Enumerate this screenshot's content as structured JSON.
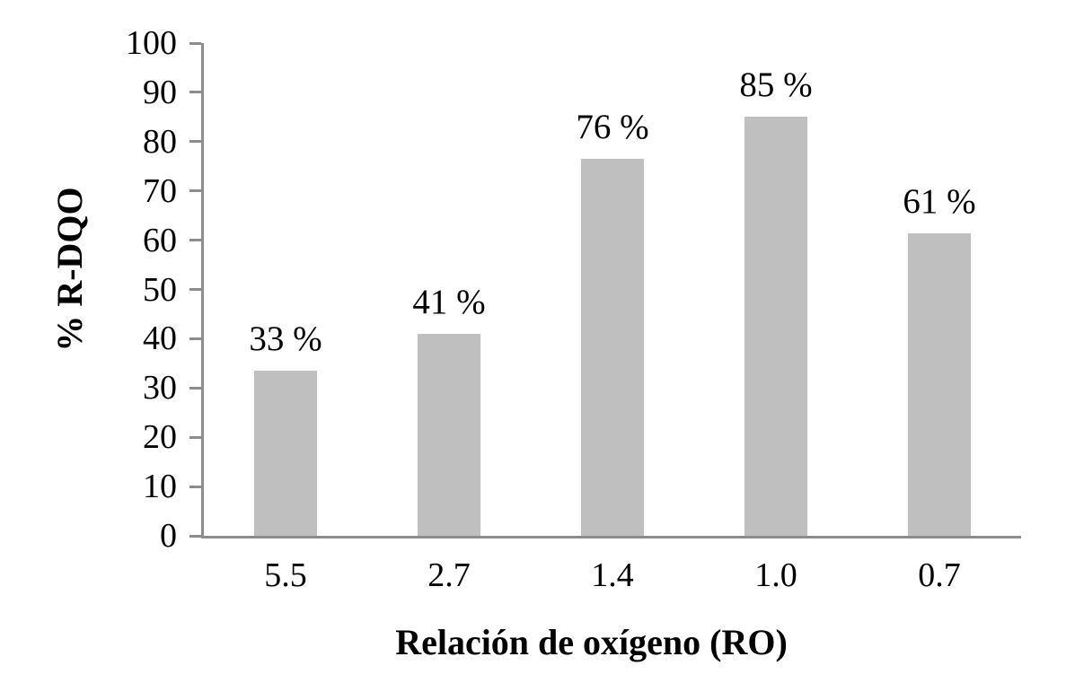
{
  "chart_data": {
    "type": "bar",
    "categories": [
      "5.5",
      "2.7",
      "1.4",
      "1.0",
      "0.7"
    ],
    "values": [
      33.5,
      41,
      76.5,
      85,
      61.3
    ],
    "bar_labels": [
      "33 %",
      "41 %",
      "76 %",
      "85 %",
      "61 %"
    ],
    "title": "",
    "xlabel": "Relación de oxígeno (RO)",
    "ylabel": "% R-DQO",
    "ylim": [
      0,
      100
    ],
    "yticks": [
      0,
      10,
      20,
      30,
      40,
      50,
      60,
      70,
      80,
      90,
      100
    ],
    "grid": false,
    "legend": false,
    "colors": {
      "bar_fill": "#bfbfbf",
      "axis_line": "#8c8c8c",
      "text": "#000000",
      "background": "#ffffff"
    }
  }
}
